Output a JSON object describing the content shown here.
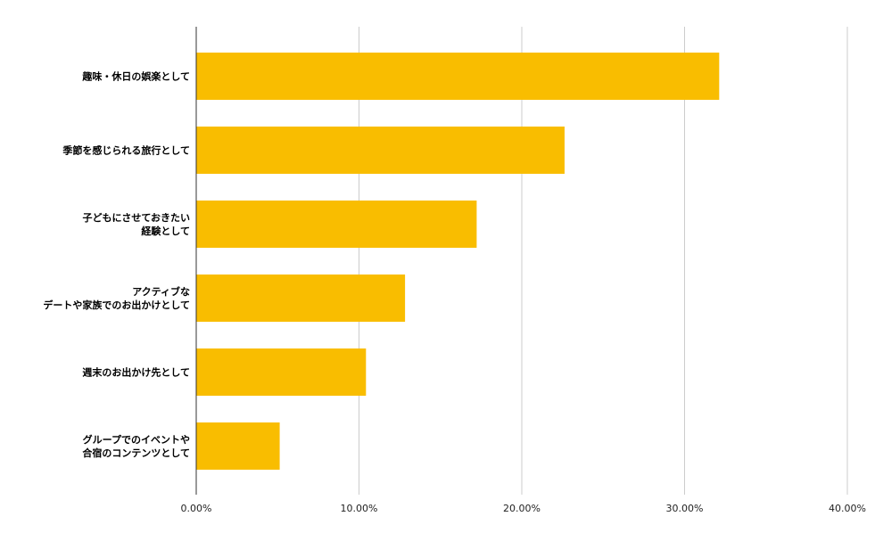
{
  "chart_data": {
    "type": "bar",
    "orientation": "horizontal",
    "title": "",
    "xlabel": "",
    "ylabel": "",
    "categories": [
      "趣味・休日の娯楽として",
      "季節を感じられる旅行として",
      "子どもにさせておきたい\n経験として",
      "アクティブな\nデートや家族でのお出かけとして",
      "週末のお出かけ先として",
      "グループでのイベントや\n合宿のコンテンツとして"
    ],
    "values": [
      32.1,
      22.6,
      17.2,
      12.8,
      10.4,
      5.1
    ],
    "xlim": [
      0,
      40
    ],
    "ticks": [
      0,
      10,
      20,
      30,
      40
    ],
    "tick_labels": [
      "0.00%",
      "10.00%",
      "20.00%",
      "30.00%",
      "40.00%"
    ],
    "bar_color": "#f9bd00",
    "grid": true,
    "legend": "none"
  }
}
